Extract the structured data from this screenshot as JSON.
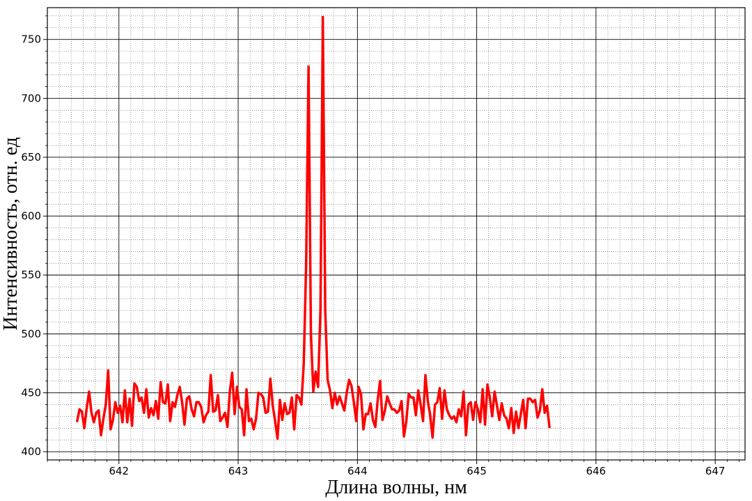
{
  "chart_data": {
    "type": "line",
    "title": "",
    "xlabel": "Длина волны, нм",
    "ylabel": "Интенсивность, отн. ед",
    "xlim": [
      641.4,
      647.25
    ],
    "ylim": [
      393,
      777
    ],
    "x_ticks": [
      642,
      643,
      644,
      645,
      646,
      647
    ],
    "y_ticks": [
      400,
      450,
      500,
      550,
      600,
      650,
      700,
      750
    ],
    "x_minor_step": 0.1,
    "y_minor_step": 10,
    "grid": "on (major solid, minor dotted)",
    "legend": "none",
    "series": [
      {
        "color": "#ff0000",
        "x_start": 641.65,
        "x_step": 0.02,
        "y": [
          426,
          436,
          434,
          420,
          437,
          451,
          433,
          425,
          433,
          435,
          414,
          428,
          440,
          469,
          419,
          427,
          442,
          433,
          439,
          425,
          452,
          425,
          445,
          422,
          458,
          455,
          443,
          446,
          433,
          453,
          429,
          437,
          431,
          443,
          428,
          459,
          442,
          441,
          457,
          426,
          442,
          438,
          448,
          455,
          442,
          423,
          445,
          447,
          436,
          430,
          442,
          442,
          438,
          425,
          431,
          434,
          465,
          434,
          435,
          448,
          426,
          429,
          433,
          421,
          451,
          467,
          432,
          455,
          438,
          436,
          414,
          453,
          426,
          428,
          419,
          428,
          450,
          449,
          446,
          433,
          434,
          462,
          439,
          426,
          411,
          444,
          427,
          441,
          432,
          433,
          446,
          419,
          448,
          446,
          440,
          475,
          560,
          727,
          500,
          451,
          468,
          455,
          520,
          769,
          520,
          461,
          452,
          437,
          450,
          440,
          447,
          441,
          435,
          450,
          461,
          456,
          442,
          426,
          455,
          449,
          419,
          432,
          432,
          441,
          427,
          421,
          444,
          460,
          427,
          435,
          447,
          441,
          436,
          436,
          433,
          435,
          443,
          413,
          426,
          449,
          446,
          446,
          431,
          452,
          440,
          426,
          465,
          443,
          431,
          412,
          440,
          442,
          454,
          428,
          452,
          436,
          431,
          428,
          430,
          425,
          436,
          430,
          451,
          414,
          440,
          442,
          427,
          442,
          436,
          425,
          453,
          423,
          457,
          446,
          430,
          451,
          439,
          427,
          441,
          431,
          428,
          420,
          437,
          416,
          434,
          420,
          432,
          444,
          420,
          445,
          445,
          442,
          444,
          429,
          435,
          453,
          433,
          439,
          421
        ]
      }
    ]
  }
}
